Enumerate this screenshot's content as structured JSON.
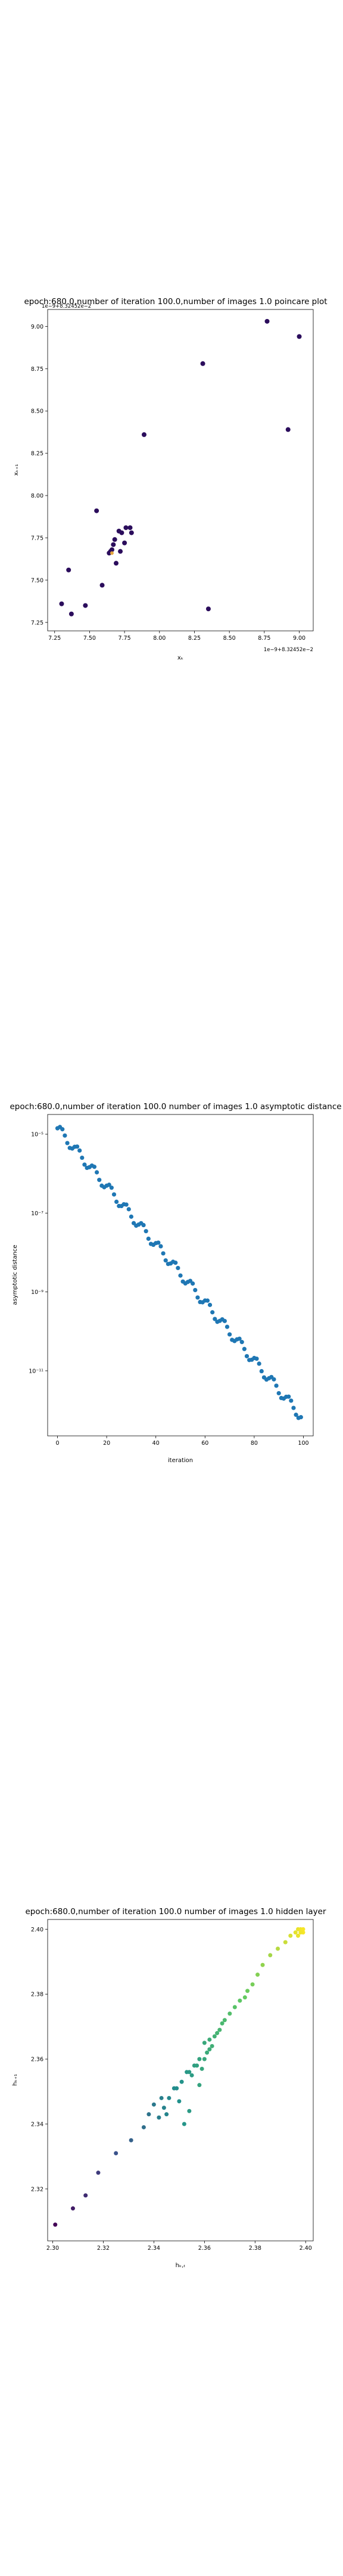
{
  "charts": [
    {
      "title": "epoch:680.0,number of iteration 100.0,number of images 1.0 poincare plot",
      "xlabel": "xₖ",
      "ylabel": "xₖ₊₁",
      "x_offset_text": "1e−9+8.32452e−2",
      "y_offset_text": "1e−9+8.32452e−2",
      "x_ticks": [
        "7.25",
        "7.50",
        "7.75",
        "8.00",
        "8.25",
        "8.50",
        "8.75",
        "9.00"
      ],
      "y_ticks": [
        "7.25",
        "7.50",
        "7.75",
        "8.00",
        "8.25",
        "8.50",
        "8.75",
        "9.00"
      ]
    },
    {
      "title": "epoch:680.0,number of iteration 100.0  number of images 1.0 asymptotic distance",
      "xlabel": "iteration",
      "ylabel": "asymptotic distance",
      "x_ticks": [
        "0",
        "20",
        "40",
        "60",
        "80",
        "100"
      ],
      "y_ticks": [
        "10⁻⁵",
        "10⁻⁷",
        "10⁻⁹",
        "10⁻¹¹"
      ]
    },
    {
      "title": "epoch:680.0,number of iteration 100.0  number of images 1.0 hidden layer",
      "xlabel": "hₖ,ₜ",
      "ylabel": "hₖ₊₁",
      "x_ticks": [
        "2.30",
        "2.32",
        "2.34",
        "2.36",
        "2.38",
        "2.40"
      ],
      "y_ticks": [
        "2.32",
        "2.34",
        "2.36",
        "2.38",
        "2.40"
      ]
    }
  ],
  "chart_data": [
    {
      "type": "scatter",
      "title": "epoch:680.0,number of iteration 100.0,number of images 1.0 poincare plot",
      "xlabel": "xₖ",
      "ylabel": "xₖ₊₁",
      "xlim": [
        7.2,
        9.1
      ],
      "ylim": [
        7.2,
        9.1
      ],
      "offset": "1e−9+8.32452e−2",
      "colors": {
        "points": "#2b0d5c",
        "highlight": "#e3a33c"
      },
      "points": [
        [
          7.3,
          7.36
        ],
        [
          7.35,
          7.56
        ],
        [
          7.37,
          7.3
        ],
        [
          7.47,
          7.35
        ],
        [
          7.55,
          7.91
        ],
        [
          7.59,
          7.47
        ],
        [
          7.64,
          7.66
        ],
        [
          7.65,
          7.67
        ],
        [
          7.66,
          7.68
        ],
        [
          7.67,
          7.71
        ],
        [
          7.68,
          7.74
        ],
        [
          7.69,
          7.6
        ],
        [
          7.71,
          7.79
        ],
        [
          7.72,
          7.67
        ],
        [
          7.73,
          7.78
        ],
        [
          7.75,
          7.72
        ],
        [
          7.76,
          7.81
        ],
        [
          7.79,
          7.81
        ],
        [
          7.8,
          7.78
        ],
        [
          7.89,
          8.36
        ],
        [
          8.31,
          8.78
        ],
        [
          8.35,
          7.33
        ],
        [
          8.77,
          9.03
        ],
        [
          8.92,
          8.39
        ],
        [
          9.0,
          8.94
        ]
      ],
      "highlight_points": [
        [
          7.66,
          7.66
        ]
      ],
      "grid": false
    },
    {
      "type": "scatter",
      "title": "epoch:680.0,number of iteration 100.0  number of images 1.0 asymptotic distance",
      "xlabel": "iteration",
      "ylabel": "asymptotic distance",
      "xlim": [
        -4,
        104
      ],
      "ylim_log10": [
        -12.65,
        -4.5
      ],
      "yscale": "log",
      "color": "#1f77b4",
      "log10_start": -4.85,
      "log10_end": -12.15,
      "n_points": 100,
      "grid": false
    },
    {
      "type": "scatter",
      "title": "epoch:680.0,number of iteration 100.0  number of images 1.0 hidden layer",
      "xlabel": "hₖ,ₜ",
      "ylabel": "hₖ₊₁",
      "xlim": [
        2.298,
        2.403
      ],
      "ylim": [
        2.304,
        2.403
      ],
      "colormap": "viridis",
      "points": [
        [
          2.301,
          2.309
        ],
        [
          2.308,
          2.314
        ],
        [
          2.313,
          2.318
        ],
        [
          2.318,
          2.325
        ],
        [
          2.325,
          2.331
        ],
        [
          2.331,
          2.335
        ],
        [
          2.336,
          2.339
        ],
        [
          2.338,
          2.343
        ],
        [
          2.34,
          2.346
        ],
        [
          2.342,
          2.342
        ],
        [
          2.343,
          2.348
        ],
        [
          2.344,
          2.345
        ],
        [
          2.345,
          2.343
        ],
        [
          2.346,
          2.348
        ],
        [
          2.348,
          2.351
        ],
        [
          2.349,
          2.351
        ],
        [
          2.35,
          2.347
        ],
        [
          2.351,
          2.353
        ],
        [
          2.352,
          2.34
        ],
        [
          2.353,
          2.356
        ],
        [
          2.354,
          2.356
        ],
        [
          2.354,
          2.344
        ],
        [
          2.355,
          2.355
        ],
        [
          2.356,
          2.358
        ],
        [
          2.357,
          2.358
        ],
        [
          2.358,
          2.36
        ],
        [
          2.358,
          2.352
        ],
        [
          2.359,
          2.357
        ],
        [
          2.36,
          2.36
        ],
        [
          2.36,
          2.365
        ],
        [
          2.361,
          2.362
        ],
        [
          2.362,
          2.366
        ],
        [
          2.362,
          2.363
        ],
        [
          2.363,
          2.364
        ],
        [
          2.364,
          2.367
        ],
        [
          2.365,
          2.368
        ],
        [
          2.366,
          2.369
        ],
        [
          2.367,
          2.371
        ],
        [
          2.368,
          2.372
        ],
        [
          2.37,
          2.374
        ],
        [
          2.372,
          2.376
        ],
        [
          2.374,
          2.378
        ],
        [
          2.376,
          2.379
        ],
        [
          2.377,
          2.381
        ],
        [
          2.379,
          2.383
        ],
        [
          2.381,
          2.386
        ],
        [
          2.383,
          2.389
        ],
        [
          2.386,
          2.392
        ],
        [
          2.389,
          2.394
        ],
        [
          2.392,
          2.396
        ],
        [
          2.394,
          2.398
        ],
        [
          2.396,
          2.399
        ],
        [
          2.397,
          2.4
        ],
        [
          2.398,
          2.4
        ],
        [
          2.399,
          2.4
        ],
        [
          2.399,
          2.399
        ],
        [
          2.398,
          2.399
        ],
        [
          2.397,
          2.398
        ]
      ],
      "grid": false
    }
  ]
}
